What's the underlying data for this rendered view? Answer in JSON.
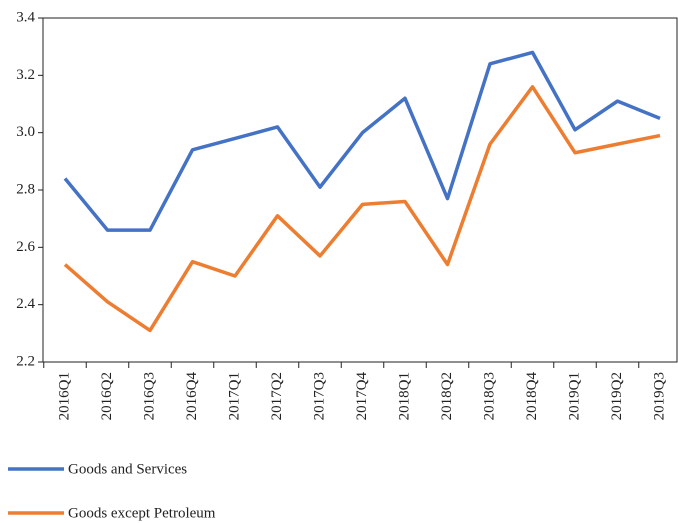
{
  "chart_data": {
    "type": "line",
    "categories": [
      "2016Q1",
      "2016Q2",
      "2016Q3",
      "2016Q4",
      "2017Q1",
      "2017Q2",
      "2017Q3",
      "2017Q4",
      "2018Q1",
      "2018Q2",
      "2018Q3",
      "2018Q4",
      "2019Q1",
      "2019Q2",
      "2019Q3"
    ],
    "series": [
      {
        "name": "Goods and Services",
        "color": "#4472c4",
        "values": [
          2.84,
          2.66,
          2.66,
          2.94,
          2.98,
          3.02,
          2.81,
          3.0,
          3.12,
          2.77,
          3.24,
          3.28,
          3.01,
          3.11,
          3.05
        ]
      },
      {
        "name": "Goods except Petroleum",
        "color": "#ed7d31",
        "values": [
          2.54,
          2.41,
          2.31,
          2.55,
          2.5,
          2.71,
          2.57,
          2.75,
          2.76,
          2.54,
          2.96,
          3.16,
          2.93,
          2.96,
          2.99
        ]
      }
    ],
    "ylim": [
      2.2,
      3.4
    ],
    "yticks": [
      2.2,
      2.4,
      2.6,
      2.8,
      {
        "value": 3,
        "label": "3.0"
      },
      3.2,
      3.4
    ],
    "legend": "bottom"
  }
}
